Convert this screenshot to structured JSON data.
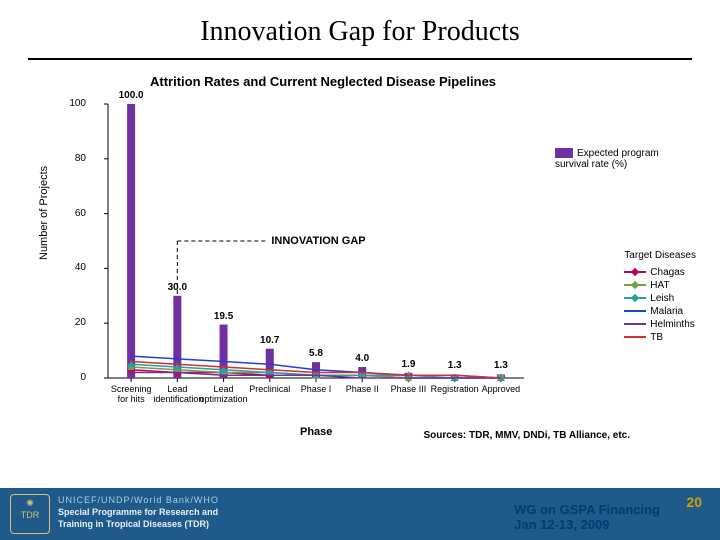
{
  "title": "Innovation Gap for Products",
  "chart": {
    "type": "bar+line",
    "title": "Attrition Rates and Current Neglected Disease Pipelines",
    "y_axis": {
      "label": "Number of Projects",
      "min": 0,
      "max": 100,
      "ticks": [
        0,
        20,
        40,
        60,
        80,
        100
      ],
      "label_fontsize": 11
    },
    "x_axis": {
      "label": "Phase",
      "label_fontsize": 11
    },
    "categories": [
      "Screening for hits",
      "Lead identification",
      "Lead optimization",
      "Preclinical",
      "Phase I",
      "Phase II",
      "Phase III",
      "Registration",
      "Approved"
    ],
    "bar_series": {
      "name": "Expected program survival rate (%)",
      "color": "#7030a0",
      "values": [
        100.0,
        30.0,
        19.5,
        10.7,
        5.8,
        4.0,
        1.9,
        1.3,
        1.3
      ]
    },
    "gap_marker": {
      "text": "INNOVATION GAP",
      "y": 50
    },
    "line_series_legend_title": "Target Diseases",
    "line_series": [
      {
        "name": "Chagas",
        "color": "#c00060",
        "marker": "diamond",
        "values": [
          3,
          2,
          2,
          1,
          1,
          1,
          0,
          0,
          0
        ]
      },
      {
        "name": "HAT",
        "color": "#7b9e3f",
        "marker": "square",
        "values": [
          4,
          3,
          2,
          2,
          1,
          1,
          0,
          0,
          0
        ]
      },
      {
        "name": "Leish",
        "color": "#2aa0a0",
        "marker": "triangle",
        "values": [
          5,
          4,
          3,
          2,
          1,
          1,
          1,
          0,
          0
        ]
      },
      {
        "name": "Malaria",
        "color": "#2040d0",
        "marker": "line",
        "values": [
          8,
          7,
          6,
          5,
          3,
          2,
          1,
          1,
          0
        ]
      },
      {
        "name": "Helminths",
        "color": "#7030a0",
        "marker": "line",
        "values": [
          2,
          2,
          1,
          1,
          1,
          0,
          0,
          0,
          0
        ]
      },
      {
        "name": "TB",
        "color": "#d03030",
        "marker": "line",
        "values": [
          6,
          5,
          4,
          3,
          2,
          2,
          1,
          1,
          0
        ]
      }
    ],
    "plot_bg": "#ffffff",
    "tick_color": "#000000",
    "font_size_ticks": 10
  },
  "sources": "Sources: TDR, MMV, DNDi, TB Alliance, etc.",
  "footer": {
    "bg": "#1f5a8a",
    "org_line1": "UNICEF/UNDP/World Bank/WHO",
    "org_line2a": "Special Programme for Research and",
    "org_line2b": "Training in Tropical Diseases (TDR)",
    "right_line1": "WG on GSPA Financing",
    "right_line2": "Jan 12-13, 2009",
    "slide_number": "20"
  }
}
